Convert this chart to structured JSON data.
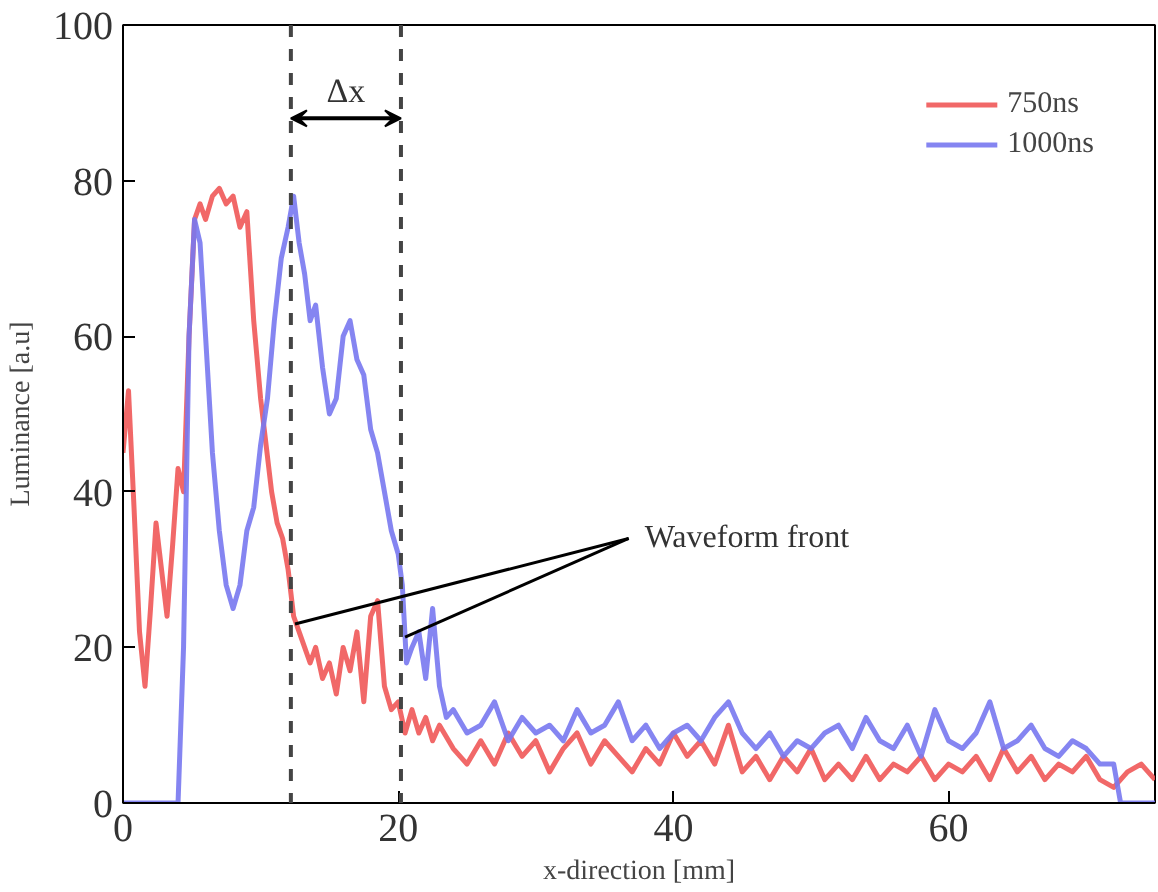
{
  "chart_data": {
    "type": "line",
    "xlabel": "x-direction [mm]",
    "ylabel": "Luminance [a.u]",
    "xlim": [
      0,
      75
    ],
    "ylim": [
      0,
      100
    ],
    "xticks": [
      0,
      20,
      40,
      60
    ],
    "yticks": [
      0,
      20,
      40,
      60,
      80,
      100
    ],
    "grid": false,
    "legend": "top right",
    "marker": "none",
    "line_style": "solid",
    "series": [
      {
        "name": "750ns",
        "color": "#f05858",
        "x": [
          0,
          0.4,
          0.8,
          1.2,
          1.6,
          2,
          2.4,
          2.8,
          3.2,
          3.6,
          4,
          4.4,
          4.8,
          5.2,
          5.6,
          6,
          6.5,
          7,
          7.5,
          8,
          8.5,
          9,
          9.5,
          10,
          10.4,
          10.8,
          11.2,
          11.6,
          12,
          12.4,
          12.8,
          13.2,
          13.6,
          14,
          14.5,
          15,
          15.5,
          16,
          16.5,
          17,
          17.5,
          18,
          18.5,
          19,
          19.5,
          20,
          20.5,
          21,
          21.5,
          22,
          22.5,
          23,
          24,
          25,
          26,
          27,
          28,
          29,
          30,
          31,
          32,
          33,
          34,
          35,
          36,
          37,
          38,
          39,
          40,
          41,
          42,
          43,
          44,
          45,
          46,
          47,
          48,
          49,
          50,
          51,
          52,
          53,
          54,
          55,
          56,
          57,
          58,
          59,
          60,
          61,
          62,
          63,
          64,
          65,
          66,
          67,
          68,
          69,
          70,
          71,
          72,
          73,
          74,
          75
        ],
        "values": [
          45,
          53,
          38,
          22,
          15,
          25,
          36,
          30,
          24,
          33,
          43,
          40,
          60,
          75,
          77,
          75,
          78,
          79,
          77,
          78,
          74,
          76,
          62,
          52,
          46,
          40,
          36,
          34,
          30,
          24,
          22,
          20,
          18,
          20,
          16,
          18,
          14,
          20,
          17,
          22,
          13,
          24,
          26,
          15,
          12,
          13,
          9,
          12,
          9,
          11,
          8,
          10,
          7,
          5,
          8,
          5,
          9,
          6,
          8,
          4,
          7,
          9,
          5,
          8,
          6,
          4,
          7,
          5,
          9,
          6,
          8,
          5,
          10,
          4,
          6,
          3,
          6,
          4,
          7,
          3,
          5,
          3,
          6,
          3,
          5,
          4,
          6,
          3,
          5,
          4,
          6,
          3,
          7,
          4,
          6,
          3,
          5,
          4,
          6,
          3,
          2,
          4,
          5,
          3
        ]
      },
      {
        "name": "1000ns",
        "color": "#7878f0",
        "x": [
          0,
          4,
          4.4,
          4.8,
          5.2,
          5.6,
          6,
          6.5,
          7,
          7.5,
          8,
          8.5,
          9,
          9.5,
          10,
          10.5,
          11,
          11.5,
          12,
          12.4,
          12.8,
          13.2,
          13.6,
          14,
          14.5,
          15,
          15.5,
          16,
          16.5,
          17,
          17.5,
          18,
          18.5,
          19,
          19.5,
          20,
          20.3,
          20.6,
          21,
          21.5,
          22,
          22.5,
          23,
          23.5,
          24,
          25,
          26,
          27,
          28,
          29,
          30,
          31,
          32,
          33,
          34,
          35,
          36,
          37,
          38,
          39,
          40,
          41,
          42,
          43,
          44,
          45,
          46,
          47,
          48,
          49,
          50,
          51,
          52,
          53,
          54,
          55,
          56,
          57,
          58,
          59,
          60,
          61,
          62,
          63,
          64,
          65,
          66,
          67,
          68,
          69,
          70,
          71,
          72,
          72.5,
          75
        ],
        "values": [
          0,
          0,
          20,
          60,
          75,
          72,
          60,
          45,
          35,
          28,
          25,
          28,
          35,
          38,
          46,
          52,
          62,
          70,
          74,
          78,
          72,
          68,
          62,
          64,
          56,
          50,
          52,
          60,
          62,
          57,
          55,
          48,
          45,
          40,
          35,
          32,
          28,
          18,
          20,
          22,
          16,
          25,
          15,
          11,
          12,
          9,
          10,
          13,
          8,
          11,
          9,
          10,
          8,
          12,
          9,
          10,
          13,
          8,
          10,
          7,
          9,
          10,
          8,
          11,
          13,
          9,
          7,
          9,
          6,
          8,
          7,
          9,
          10,
          7,
          11,
          8,
          7,
          10,
          6,
          12,
          8,
          7,
          9,
          13,
          7,
          8,
          10,
          7,
          6,
          8,
          7,
          5,
          5,
          0,
          0
        ]
      }
    ],
    "ref_lines": [
      {
        "axis": "x",
        "value": 12.2,
        "label": "Δx",
        "color": "#444444",
        "line_style": "dashed"
      },
      {
        "axis": "x",
        "value": 20.2,
        "color": "#444444",
        "line_style": "dashed"
      }
    ],
    "annotations": [
      {
        "text": "Waveform front",
        "x": 12.5,
        "y": 23
      }
    ]
  }
}
